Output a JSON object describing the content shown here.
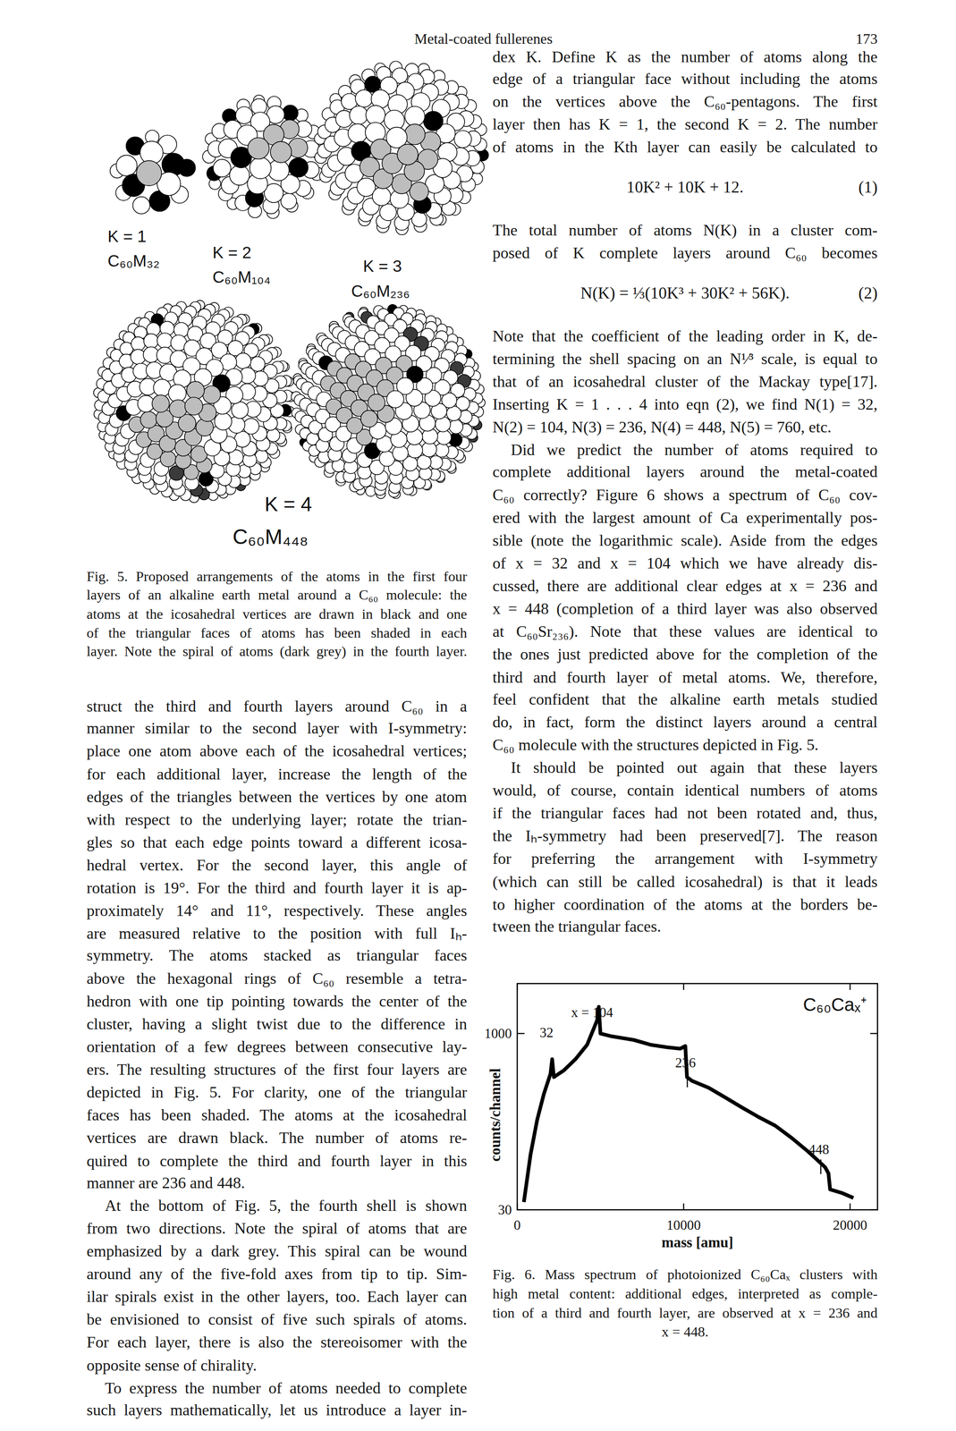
{
  "header": {
    "title": "Metal-coated fullerenes",
    "page_number": "173"
  },
  "figure5": {
    "panels": [
      {
        "k_label": "K = 1",
        "formula": "C₆₀M₃₂",
        "atoms": 32
      },
      {
        "k_label": "K = 2",
        "formula": "C₆₀M₁₀₄",
        "atoms": 104
      },
      {
        "k_label": "K = 3",
        "formula": "C₆₀M₂₃₆",
        "atoms": 236
      },
      {
        "k_label": "K = 4",
        "formula": "C₆₀M₄₄₈",
        "atoms": 448
      }
    ],
    "caption": [
      "Fig. 5. Proposed arrangements of the atoms in the first four",
      "layers of an alkaline earth metal around a C₆₀ molecule: the",
      "atoms at the icosahedral vertices are drawn in black and one",
      "of the triangular faces of atoms has been shaded in each",
      "layer. Note the spiral of atoms (dark grey) in the fourth layer."
    ]
  },
  "left_column": {
    "paragraphs": [
      [
        "struct the third and fourth layers around C₆₀ in a",
        "manner similar to the second layer with I-symmetry:",
        "place one atom above each of the icosahedral vertices;",
        "for each additional layer, increase the length of the",
        "edges of the triangles between the vertices by one atom",
        "with respect to the underlying layer; rotate the trian-",
        "gles so that each edge points toward a different icosa-",
        "hedral vertex. For the second layer, this angle of",
        "rotation is 19°. For the third and fourth layer it is ap-",
        "proximately 14° and 11°, respectively. These angles",
        "are measured relative to the position with full Iₕ-",
        "symmetry. The atoms stacked as triangular faces",
        "above the hexagonal rings of C₆₀ resemble a tetra-",
        "hedron with one tip pointing towards the center of the",
        "cluster, having a slight twist due to the difference in",
        "orientation of a few degrees between consecutive lay-",
        "ers. The resulting structures of the first four layers are",
        "depicted in Fig. 5. For clarity, one of the triangular",
        "faces has been shaded. The atoms at the icosahedral",
        "vertices are drawn black. The number of atoms re-",
        "quired to complete the third and fourth layer in this",
        "manner are 236 and 448."
      ],
      [
        "At the bottom of Fig. 5, the fourth shell is shown",
        "from two directions. Note the spiral of atoms that are",
        "emphasized by a dark grey. This spiral can be wound",
        "around any of the five-fold axes from tip to tip. Sim-",
        "ilar spirals exist in the other layers, too. Each layer can",
        "be envisioned to consist of five such spirals of atoms.",
        "For each layer, there is also the stereoisomer with the",
        "opposite sense of chirality."
      ],
      [
        "To express the number of atoms needed to complete",
        "such layers mathematically, let us introduce a layer in-"
      ]
    ]
  },
  "right_column": {
    "blocks": [
      {
        "lines": [
          "dex K. Define K as the number of atoms along the",
          "edge of a triangular face without including the atoms",
          "on the vertices above the C₆₀-pentagons. The first",
          "layer then has K = 1, the second K = 2. The number",
          "of atoms in the Kth layer can easily be calculated to"
        ]
      },
      {
        "equation": "10K² + 10K + 12.",
        "number": "(1)"
      },
      {
        "lines": [
          "The total number of atoms N(K) in a cluster com-",
          "posed of K complete layers around C₆₀ becomes"
        ]
      },
      {
        "equation": "N(K) = ⅓(10K³ + 30K² + 56K).",
        "number": "(2)"
      },
      {
        "lines": [
          "Note that the coefficient of the leading order in K, de-",
          "termining the shell spacing on an N¹⁄³ scale, is equal to",
          "that of an icosahedral cluster of the Mackay type[17].",
          "Inserting K = 1 . . . 4 into eqn (2), we find N(1) = 32,",
          "N(2) = 104, N(3) = 236, N(4) = 448, N(5) = 760, etc."
        ]
      },
      {
        "lines": [
          "Did we predict the number of atoms required to",
          "complete additional layers around the metal-coated",
          "C₆₀ correctly? Figure 6 shows a spectrum of C₆₀ cov-",
          "ered with the largest amount of Ca experimentally pos-",
          "sible (note the logarithmic scale). Aside from the edges",
          "of x = 32 and x = 104 which we have already dis-",
          "cussed, there are additional clear edges at x = 236 and",
          "x = 448 (completion of a third layer was also observed",
          "at C₆₀Sr₂₃₆). Note that these values are identical to",
          "the ones just predicted above for the completion of the",
          "third and fourth layer of metal atoms. We, therefore,",
          "feel confident that the alkaline earth metals studied",
          "do, in fact, form the distinct layers around a central",
          "C₆₀ molecule with the structures depicted in Fig. 5."
        ]
      },
      {
        "lines": [
          "It should be pointed out again that these layers",
          "would, of course, contain identical numbers of atoms",
          "if the triangular faces had not been rotated and, thus,",
          "the Iₕ-symmetry had been preserved[7]. The reason",
          "for preferring the arrangement with I-symmetry",
          "(which can still be called icosahedral) is that it leads",
          "to higher coordination of the atoms at the borders be-",
          "tween the triangular faces."
        ]
      }
    ]
  },
  "chart_data": {
    "type": "line",
    "title": "C₆₀Caₓ⁺",
    "x_label": "mass [amu]",
    "y_label": "counts/channel",
    "log": "y",
    "color": "#000000",
    "xlim": [
      0,
      21650
    ],
    "ylim": [
      30,
      2700
    ],
    "xticks": [
      0,
      10000,
      20000
    ],
    "yticks": [
      30,
      1000
    ],
    "x": [
      400,
      800,
      1200,
      1600,
      2000,
      2100,
      2200,
      2800,
      3500,
      4200,
      4800,
      4900,
      5000,
      5600,
      6200,
      7000,
      8000,
      9000,
      9800,
      10100,
      10200,
      10500,
      11500,
      12500,
      13500,
      14500,
      15500,
      16500,
      17500,
      18500,
      18700,
      18800,
      19500,
      20200
    ],
    "values": [
      35,
      90,
      180,
      300,
      450,
      600,
      420,
      480,
      600,
      800,
      1300,
      1700,
      1000,
      950,
      920,
      880,
      800,
      760,
      740,
      780,
      420,
      390,
      340,
      280,
      230,
      190,
      160,
      125,
      95,
      70,
      62,
      45,
      42,
      38
    ],
    "annotations": [
      {
        "text": "x = 104",
        "x": 4500,
        "y": 1390
      },
      {
        "text": "32",
        "x": 1760,
        "y": 930
      },
      {
        "text": "236",
        "x": 10110,
        "y": 511
      },
      {
        "text": "448",
        "x": 18130,
        "y": 91
      }
    ]
  },
  "figure6_caption": [
    "Fig. 6. Mass spectrum of photoionized C₆₀Caₓ clusters with",
    "high metal content: additional edges, interpreted as comple-",
    "tion of a third and fourth layer, are observed at x = 236 and",
    "x = 448."
  ]
}
